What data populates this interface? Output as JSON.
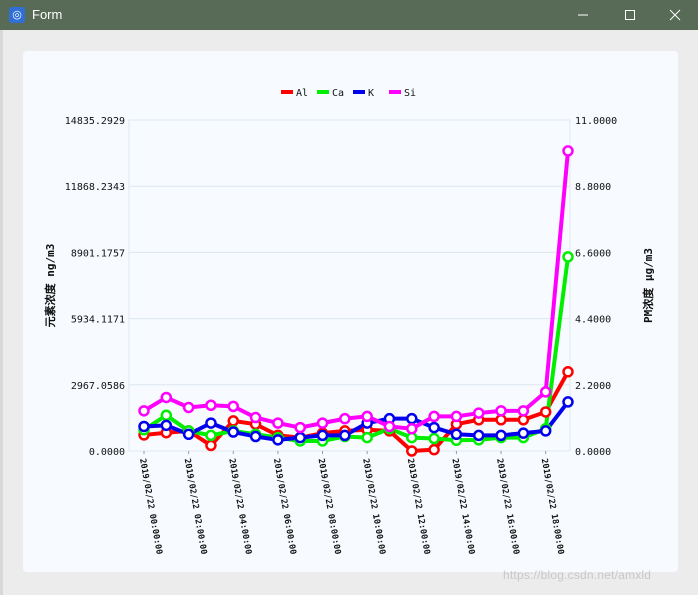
{
  "window": {
    "title": "Form",
    "icon": "form-app-icon",
    "controls": {
      "minimize": "minimize-icon",
      "maximize": "maximize-icon",
      "close": "close-icon"
    }
  },
  "watermark": "https://blog.csdn.net/amxld",
  "chart_data": {
    "type": "line",
    "title": "",
    "legend_position": "top-center",
    "grid": true,
    "x_tick_labels": [
      "2019/02/22 00:00:00",
      "2019/02/22 02:00:00",
      "2019/02/22 04:00:00",
      "2019/02/22 06:00:00",
      "2019/02/22 08:00:00",
      "2019/02/22 10:00:00",
      "2019/02/22 12:00:00",
      "2019/02/22 14:00:00",
      "2019/02/22 16:00:00",
      "2019/02/22 18:00:00"
    ],
    "x_hours": [
      0,
      1,
      2,
      3,
      4,
      5,
      6,
      7,
      8,
      9,
      10,
      11,
      12,
      13,
      14,
      15,
      16,
      17,
      18,
      19
    ],
    "xlim": [
      0,
      19
    ],
    "y_left": {
      "label": "元素浓度 ng/m3",
      "ticks": [
        "0.0000",
        "2967.0586",
        "5934.1171",
        "8901.1757",
        "11868.2343",
        "14835.2929"
      ],
      "ylim": [
        0,
        14835.2929
      ]
    },
    "y_right": {
      "label": "PM浓度 μg/m3",
      "ticks": [
        "0.0000",
        "2.2000",
        "4.4000",
        "6.6000",
        "8.8000",
        "11.0000"
      ],
      "ylim": [
        0,
        11
      ]
    },
    "series": [
      {
        "name": "Al",
        "color": "#ff0000",
        "values": [
          720,
          820,
          900,
          250,
          1350,
          1200,
          700,
          600,
          800,
          900,
          950,
          900,
          0,
          60,
          1200,
          1400,
          1400,
          1400,
          1750,
          3550
        ]
      },
      {
        "name": "Ca",
        "color": "#00ee00",
        "values": [
          950,
          1600,
          900,
          700,
          900,
          750,
          600,
          450,
          450,
          650,
          600,
          1000,
          600,
          560,
          480,
          500,
          600,
          600,
          1000,
          8700
        ]
      },
      {
        "name": "K",
        "color": "#0000ee",
        "values": [
          1100,
          1150,
          750,
          1250,
          850,
          650,
          500,
          600,
          700,
          700,
          1250,
          1450,
          1450,
          1050,
          750,
          700,
          700,
          800,
          900,
          2200
        ]
      },
      {
        "name": "Si",
        "color": "#ff00ff",
        "values": [
          1800,
          2400,
          1950,
          2050,
          2000,
          1500,
          1250,
          1050,
          1250,
          1450,
          1550,
          1100,
          1000,
          1550,
          1550,
          1700,
          1800,
          1800,
          2650,
          13450
        ]
      }
    ]
  }
}
